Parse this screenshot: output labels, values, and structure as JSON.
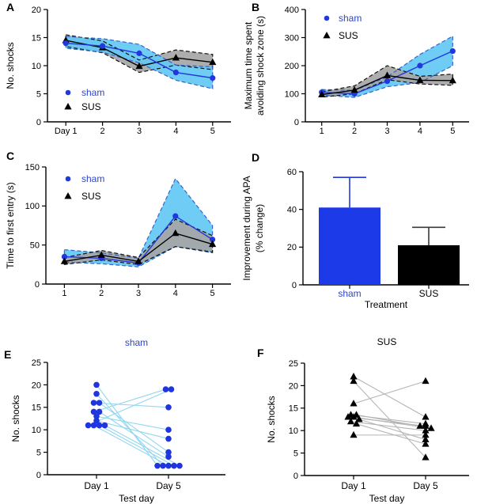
{
  "figure_background": "#ffffff",
  "colors": {
    "sham_marker": "#2238dc",
    "sham_text": "#2c46cf",
    "sham_band_fill": "#63c8f3",
    "sham_band_stroke": "#3564cf",
    "sus_marker": "#000000",
    "sus_band_fill": "#a6a6a6",
    "sus_band_stroke": "#111111",
    "pair_line_sham": "#93d6ef",
    "pair_line_sus": "#b5b5b5",
    "bar_blue": "#1d3ae8",
    "axis": "#000000"
  },
  "chart_data": [
    {
      "panel": "A",
      "type": "line",
      "title": "",
      "xlabel": "",
      "ylabel": "No. shocks",
      "x": [
        1,
        2,
        3,
        4,
        5
      ],
      "x_tick_labels": [
        "Day 1",
        "2",
        "3",
        "4",
        "5"
      ],
      "ylim": [
        0,
        20
      ],
      "yticks": [
        0,
        5,
        10,
        15,
        20
      ],
      "legend": [
        "sham",
        "SUS"
      ],
      "legend_position": "lower-left",
      "series": [
        {
          "name": "SUS",
          "marker": "triangle",
          "color": "#000000",
          "label_color": "#000000",
          "band_fill": "#a6a6a6",
          "band_stroke": "#111111",
          "values": [
            14.5,
            13.2,
            9.9,
            11.4,
            10.6
          ],
          "upper": [
            15.5,
            14.4,
            11.0,
            12.8,
            12.0
          ],
          "lower": [
            13.4,
            12.3,
            8.8,
            10.1,
            9.3
          ]
        },
        {
          "name": "sham",
          "marker": "circle",
          "color": "#2238dc",
          "label_color": "#2c46cf",
          "band_fill": "#63c8f3",
          "band_stroke": "#3564cf",
          "values": [
            14.0,
            13.5,
            12.2,
            8.8,
            7.8
          ],
          "upper": [
            15.2,
            14.8,
            13.8,
            10.1,
            9.8
          ],
          "lower": [
            13.1,
            12.4,
            10.5,
            7.4,
            5.9
          ]
        }
      ]
    },
    {
      "panel": "B",
      "type": "line",
      "title": "",
      "xlabel": "",
      "ylabel_lines": [
        "Maximum time spent",
        "avoiding shock zone (s)"
      ],
      "x": [
        1,
        2,
        3,
        4,
        5
      ],
      "x_tick_labels": [
        "1",
        "2",
        "3",
        "4",
        "5"
      ],
      "ylim": [
        0,
        400
      ],
      "yticks": [
        0,
        100,
        200,
        300,
        400
      ],
      "legend": [
        "sham",
        "SUS"
      ],
      "legend_position": "upper-left",
      "series": [
        {
          "name": "sham",
          "marker": "circle",
          "color": "#2238dc",
          "label_color": "#2c46cf",
          "band_fill": "#63c8f3",
          "band_stroke": "#3564cf",
          "values": [
            105,
            100,
            145,
            200,
            252
          ],
          "upper": [
            115,
            112,
            160,
            240,
            305
          ],
          "lower": [
            95,
            87,
            125,
            140,
            200
          ]
        },
        {
          "name": "SUS",
          "marker": "triangle",
          "color": "#000000",
          "label_color": "#000000",
          "band_fill": "#a6a6a6",
          "band_stroke": "#111111",
          "values": [
            97,
            113,
            165,
            148,
            147
          ],
          "upper": [
            107,
            128,
            200,
            162,
            170
          ],
          "lower": [
            88,
            100,
            150,
            135,
            130
          ]
        }
      ]
    },
    {
      "panel": "C",
      "type": "line",
      "title": "",
      "xlabel": "",
      "ylabel": "Time to first entry (s)",
      "x": [
        1,
        2,
        3,
        4,
        5
      ],
      "x_tick_labels": [
        "1",
        "2",
        "3",
        "4",
        "5"
      ],
      "ylim": [
        0,
        150
      ],
      "yticks": [
        0,
        50,
        100,
        150
      ],
      "legend": [
        "sham",
        "SUS"
      ],
      "legend_position": "upper-left",
      "series": [
        {
          "name": "sham",
          "marker": "circle",
          "color": "#2238dc",
          "label_color": "#2c46cf",
          "band_fill": "#63c8f3",
          "band_stroke": "#3564cf",
          "values": [
            35,
            33,
            27,
            87,
            57
          ],
          "upper": [
            44,
            40,
            33,
            135,
            75
          ],
          "lower": [
            28,
            26,
            22,
            48,
            40
          ]
        },
        {
          "name": "SUS",
          "marker": "triangle",
          "color": "#000000",
          "label_color": "#000000",
          "band_fill": "#a6a6a6",
          "band_stroke": "#111111",
          "values": [
            29,
            37,
            29,
            65,
            51
          ],
          "upper": [
            34,
            43,
            34,
            83,
            62
          ],
          "lower": [
            25,
            31,
            25,
            48,
            41
          ]
        }
      ]
    },
    {
      "panel": "D",
      "type": "bar",
      "title": "",
      "xlabel": "Treatment",
      "ylabel_lines": [
        "Improvement during APA",
        "(% change)"
      ],
      "categories": [
        "sham",
        "SUS"
      ],
      "values": [
        41,
        21
      ],
      "errors": [
        16,
        9.5
      ],
      "bar_colors": [
        "#1d3ae8",
        "#000000"
      ],
      "error_colors": [
        "#2238dc",
        "#3a3a3a"
      ],
      "category_label_colors": [
        "#2c46cf",
        "#000000"
      ],
      "ylim": [
        0,
        60
      ],
      "yticks": [
        0,
        20,
        40,
        60
      ]
    },
    {
      "panel": "E",
      "type": "paired",
      "title": "sham",
      "title_color": "#2c46cf",
      "xlabel": "Test day",
      "ylabel": "No. shocks",
      "categories": [
        "Day 1",
        "Day 5"
      ],
      "ylim": [
        0,
        25
      ],
      "yticks": [
        0,
        5,
        10,
        15,
        20,
        25
      ],
      "marker": "circle",
      "marker_color": "#1f35e0",
      "line_color": "#93d6ef",
      "pairs": [
        [
          20,
          2
        ],
        [
          18,
          2
        ],
        [
          16,
          15
        ],
        [
          16,
          5
        ],
        [
          14,
          19
        ],
        [
          14,
          4
        ],
        [
          13,
          10
        ],
        [
          12,
          8
        ],
        [
          11,
          19
        ],
        [
          11,
          2
        ],
        [
          11,
          2
        ],
        [
          11,
          2
        ]
      ]
    },
    {
      "panel": "F",
      "type": "paired",
      "title": "SUS",
      "title_color": "#000000",
      "xlabel": "Test day",
      "ylabel": "No. shocks",
      "categories": [
        "Day 1",
        "Day 5"
      ],
      "ylim": [
        0,
        25
      ],
      "yticks": [
        0,
        5,
        10,
        15,
        20,
        25
      ],
      "marker": "triangle",
      "marker_color": "#000000",
      "line_color": "#b5b5b5",
      "pairs": [
        [
          22,
          13
        ],
        [
          21,
          4
        ],
        [
          16,
          21
        ],
        [
          13.5,
          11.5
        ],
        [
          13.5,
          11
        ],
        [
          13,
          11
        ],
        [
          13,
          10.5
        ],
        [
          12.5,
          8
        ],
        [
          12,
          10
        ],
        [
          11.5,
          7
        ],
        [
          9,
          9
        ]
      ]
    }
  ]
}
